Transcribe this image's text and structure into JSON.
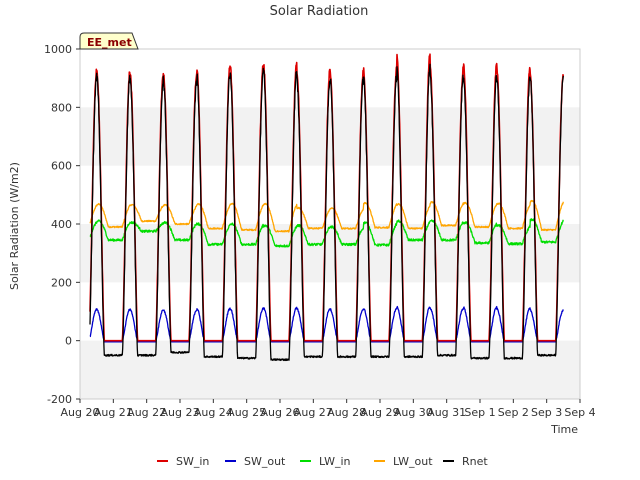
{
  "chart_data": {
    "type": "line",
    "title": "Solar Radiation",
    "xlabel": "Time",
    "ylabel": "Solar Radiation (W/m2)",
    "station_label": "EE_met",
    "ylim": [
      -200,
      1000
    ],
    "yticks": [
      -200,
      0,
      200,
      400,
      600,
      800,
      1000
    ],
    "xlim": [
      0,
      15
    ],
    "xticks": [
      {
        "x": 0,
        "label": "Aug 20"
      },
      {
        "x": 1,
        "label": "Aug 21"
      },
      {
        "x": 2,
        "label": "Aug 22"
      },
      {
        "x": 3,
        "label": "Aug 23"
      },
      {
        "x": 4,
        "label": "Aug 24"
      },
      {
        "x": 5,
        "label": "Aug 25"
      },
      {
        "x": 6,
        "label": "Aug 26"
      },
      {
        "x": 7,
        "label": "Aug 27"
      },
      {
        "x": 8,
        "label": "Aug 28"
      },
      {
        "x": 9,
        "label": "Aug 29"
      },
      {
        "x": 10,
        "label": "Aug 30"
      },
      {
        "x": 11,
        "label": "Aug 31"
      },
      {
        "x": 12,
        "label": "Sep 1"
      },
      {
        "x": 13,
        "label": "Sep 2"
      },
      {
        "x": 14,
        "label": "Sep 3"
      },
      {
        "x": 15,
        "label": "Sep 4"
      }
    ],
    "series": [
      {
        "name": "SW_in",
        "color": "#dd0000",
        "daily_peak": [
          925,
          915,
          912,
          940,
          945,
          952,
          928,
          920,
          932,
          980,
          932,
          948,
          932,
          915
        ]
      },
      {
        "name": "SW_out",
        "color": "#0000cc",
        "daily_peak": [
          108,
          106,
          105,
          110,
          110,
          112,
          110,
          108,
          110,
          116,
          110,
          114,
          110,
          105
        ]
      },
      {
        "name": "LW_in",
        "color": "#00dd00",
        "night_min": [
          345,
          375,
          345,
          330,
          330,
          325,
          330,
          330,
          328,
          345,
          345,
          335,
          332,
          338
        ],
        "day_max": [
          410,
          405,
          405,
          400,
          400,
          395,
          395,
          390,
          405,
          410,
          410,
          405,
          395,
          415
        ]
      },
      {
        "name": "LW_out",
        "color": "#ffa500",
        "night_min": [
          390,
          410,
          400,
          385,
          380,
          375,
          385,
          385,
          388,
          385,
          395,
          390,
          385,
          380
        ],
        "day_max": [
          468,
          466,
          465,
          468,
          470,
          470,
          455,
          455,
          472,
          468,
          475,
          472,
          470,
          480
        ]
      },
      {
        "name": "Rnet",
        "color": "#000000",
        "daily_peak": [
          905,
          895,
          885,
          915,
          920,
          925,
          895,
          895,
          905,
          940,
          905,
          908,
          900,
          905
        ],
        "night_value": [
          -50,
          -50,
          -40,
          -55,
          -60,
          -65,
          -55,
          -55,
          -55,
          -55,
          -50,
          -60,
          -60,
          -50
        ]
      }
    ],
    "legend_position": "bottom",
    "grid": "horizontal-bands"
  }
}
